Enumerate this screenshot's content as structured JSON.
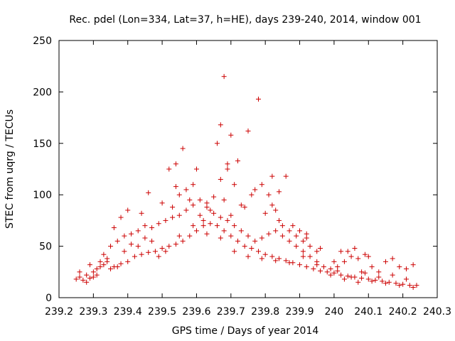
{
  "chart_data": {
    "type": "scatter",
    "title": "Rec. pdel (Lon=334, Lat=37, h=HE), days 239-240, 2014, window 001",
    "xlabel": "GPS time / Days of year 2014",
    "ylabel": "STEC from uqrg / TECUs",
    "xlim": [
      239.2,
      240.3
    ],
    "ylim": [
      0,
      250
    ],
    "xticks": [
      "239.2",
      "239.3",
      "239.4",
      "239.5",
      "239.6",
      "239.7",
      "239.8",
      "239.9",
      "240",
      "240.1",
      "240.2",
      "240.3"
    ],
    "yticks": [
      "0",
      "50",
      "100",
      "150",
      "200",
      "250"
    ],
    "grid": false,
    "legend": "none",
    "marker": "plus",
    "color": "#cc0000",
    "points": [
      [
        239.25,
        18
      ],
      [
        239.26,
        20
      ],
      [
        239.27,
        17
      ],
      [
        239.28,
        22
      ],
      [
        239.29,
        19
      ],
      [
        239.3,
        25
      ],
      [
        239.31,
        28
      ],
      [
        239.32,
        30
      ],
      [
        239.33,
        32
      ],
      [
        239.34,
        35
      ],
      [
        239.36,
        30
      ],
      [
        239.38,
        33
      ],
      [
        239.4,
        35
      ],
      [
        239.42,
        40
      ],
      [
        239.44,
        42
      ],
      [
        239.46,
        44
      ],
      [
        239.48,
        45
      ],
      [
        239.5,
        48
      ],
      [
        239.52,
        50
      ],
      [
        239.54,
        52
      ],
      [
        239.56,
        55
      ],
      [
        239.58,
        60
      ],
      [
        239.6,
        65
      ],
      [
        239.62,
        70
      ],
      [
        239.64,
        72
      ],
      [
        239.66,
        70
      ],
      [
        239.68,
        65
      ],
      [
        239.7,
        60
      ],
      [
        239.72,
        55
      ],
      [
        239.74,
        50
      ],
      [
        239.76,
        48
      ],
      [
        239.78,
        45
      ],
      [
        239.8,
        42
      ],
      [
        239.82,
        40
      ],
      [
        239.84,
        38
      ],
      [
        239.86,
        36
      ],
      [
        239.88,
        34
      ],
      [
        239.9,
        32
      ],
      [
        239.92,
        30
      ],
      [
        239.94,
        28
      ],
      [
        239.96,
        26
      ],
      [
        239.98,
        25
      ],
      [
        240.0,
        24
      ],
      [
        240.02,
        22
      ],
      [
        240.04,
        21
      ],
      [
        240.06,
        20
      ],
      [
        240.08,
        19
      ],
      [
        240.1,
        18
      ],
      [
        240.12,
        17
      ],
      [
        240.14,
        16
      ],
      [
        240.16,
        15
      ],
      [
        240.18,
        14
      ],
      [
        240.2,
        13
      ],
      [
        240.22,
        12
      ],
      [
        240.24,
        12
      ],
      [
        239.26,
        25
      ],
      [
        239.28,
        15
      ],
      [
        239.3,
        20
      ],
      [
        239.32,
        35
      ],
      [
        239.34,
        38
      ],
      [
        239.35,
        50
      ],
      [
        239.37,
        55
      ],
      [
        239.39,
        60
      ],
      [
        239.41,
        62
      ],
      [
        239.43,
        65
      ],
      [
        239.45,
        70
      ],
      [
        239.47,
        68
      ],
      [
        239.49,
        72
      ],
      [
        239.51,
        75
      ],
      [
        239.53,
        78
      ],
      [
        239.55,
        80
      ],
      [
        239.57,
        85
      ],
      [
        239.59,
        90
      ],
      [
        239.61,
        95
      ],
      [
        239.63,
        88
      ],
      [
        239.65,
        82
      ],
      [
        239.67,
        78
      ],
      [
        239.69,
        75
      ],
      [
        239.71,
        70
      ],
      [
        239.73,
        65
      ],
      [
        239.75,
        60
      ],
      [
        239.77,
        55
      ],
      [
        239.79,
        58
      ],
      [
        239.81,
        62
      ],
      [
        239.83,
        65
      ],
      [
        239.85,
        60
      ],
      [
        239.87,
        55
      ],
      [
        239.89,
        50
      ],
      [
        239.91,
        45
      ],
      [
        239.93,
        40
      ],
      [
        239.95,
        35
      ],
      [
        239.97,
        30
      ],
      [
        239.99,
        28
      ],
      [
        240.01,
        26
      ],
      [
        240.03,
        35
      ],
      [
        240.05,
        40
      ],
      [
        240.07,
        38
      ],
      [
        240.09,
        42
      ],
      [
        240.11,
        30
      ],
      [
        240.13,
        25
      ],
      [
        240.15,
        35
      ],
      [
        240.17,
        38
      ],
      [
        240.19,
        30
      ],
      [
        240.21,
        28
      ],
      [
        240.23,
        32
      ],
      [
        239.29,
        32
      ],
      [
        239.33,
        42
      ],
      [
        239.37,
        30
      ],
      [
        239.41,
        52
      ],
      [
        239.45,
        58
      ],
      [
        239.49,
        40
      ],
      [
        239.53,
        88
      ],
      [
        239.55,
        100
      ],
      [
        239.57,
        105
      ],
      [
        239.59,
        110
      ],
      [
        239.61,
        80
      ],
      [
        239.63,
        92
      ],
      [
        239.65,
        98
      ],
      [
        239.67,
        115
      ],
      [
        239.69,
        125
      ],
      [
        239.71,
        110
      ],
      [
        239.73,
        90
      ],
      [
        239.77,
        105
      ],
      [
        239.79,
        110
      ],
      [
        239.81,
        100
      ],
      [
        239.83,
        85
      ],
      [
        239.85,
        70
      ],
      [
        239.87,
        65
      ],
      [
        239.89,
        60
      ],
      [
        239.91,
        55
      ],
      [
        239.93,
        50
      ],
      [
        239.95,
        45
      ],
      [
        240.0,
        35
      ],
      [
        240.04,
        45
      ],
      [
        240.08,
        25
      ],
      [
        239.52,
        125
      ],
      [
        239.54,
        130
      ],
      [
        239.56,
        145
      ],
      [
        239.6,
        125
      ],
      [
        239.66,
        150
      ],
      [
        239.67,
        168
      ],
      [
        239.68,
        215
      ],
      [
        239.69,
        130
      ],
      [
        239.7,
        158
      ],
      [
        239.72,
        133
      ],
      [
        239.75,
        162
      ],
      [
        239.78,
        193
      ],
      [
        239.82,
        118
      ],
      [
        239.84,
        103
      ],
      [
        239.86,
        118
      ],
      [
        239.9,
        65
      ],
      [
        239.92,
        62
      ],
      [
        240.02,
        45
      ],
      [
        240.06,
        48
      ],
      [
        240.1,
        40
      ],
      [
        239.36,
        68
      ],
      [
        239.38,
        78
      ],
      [
        239.4,
        85
      ],
      [
        239.44,
        82
      ],
      [
        239.46,
        102
      ],
      [
        239.5,
        92
      ],
      [
        239.54,
        108
      ],
      [
        239.58,
        95
      ],
      [
        239.62,
        75
      ],
      [
        239.64,
        85
      ],
      [
        239.68,
        95
      ],
      [
        239.7,
        80
      ],
      [
        239.74,
        88
      ],
      [
        239.76,
        100
      ],
      [
        239.8,
        82
      ],
      [
        239.82,
        90
      ],
      [
        239.84,
        75
      ],
      [
        239.88,
        70
      ],
      [
        239.92,
        58
      ],
      [
        239.96,
        48
      ],
      [
        239.31,
        22
      ],
      [
        239.35,
        28
      ],
      [
        239.39,
        45
      ],
      [
        239.43,
        50
      ],
      [
        239.47,
        55
      ],
      [
        239.51,
        45
      ],
      [
        239.55,
        60
      ],
      [
        239.59,
        70
      ],
      [
        239.63,
        62
      ],
      [
        239.67,
        58
      ],
      [
        239.71,
        45
      ],
      [
        239.75,
        40
      ],
      [
        239.79,
        38
      ],
      [
        239.83,
        36
      ],
      [
        239.87,
        34
      ],
      [
        239.91,
        40
      ],
      [
        239.95,
        32
      ],
      [
        239.99,
        22
      ],
      [
        240.03,
        18
      ],
      [
        240.07,
        15
      ],
      [
        240.11,
        16
      ],
      [
        240.15,
        14
      ],
      [
        240.19,
        12
      ],
      [
        240.23,
        10
      ],
      [
        240.13,
        20
      ],
      [
        240.17,
        22
      ],
      [
        240.21,
        18
      ],
      [
        240.09,
        24
      ],
      [
        240.05,
        20
      ],
      [
        240.01,
        30
      ]
    ]
  }
}
